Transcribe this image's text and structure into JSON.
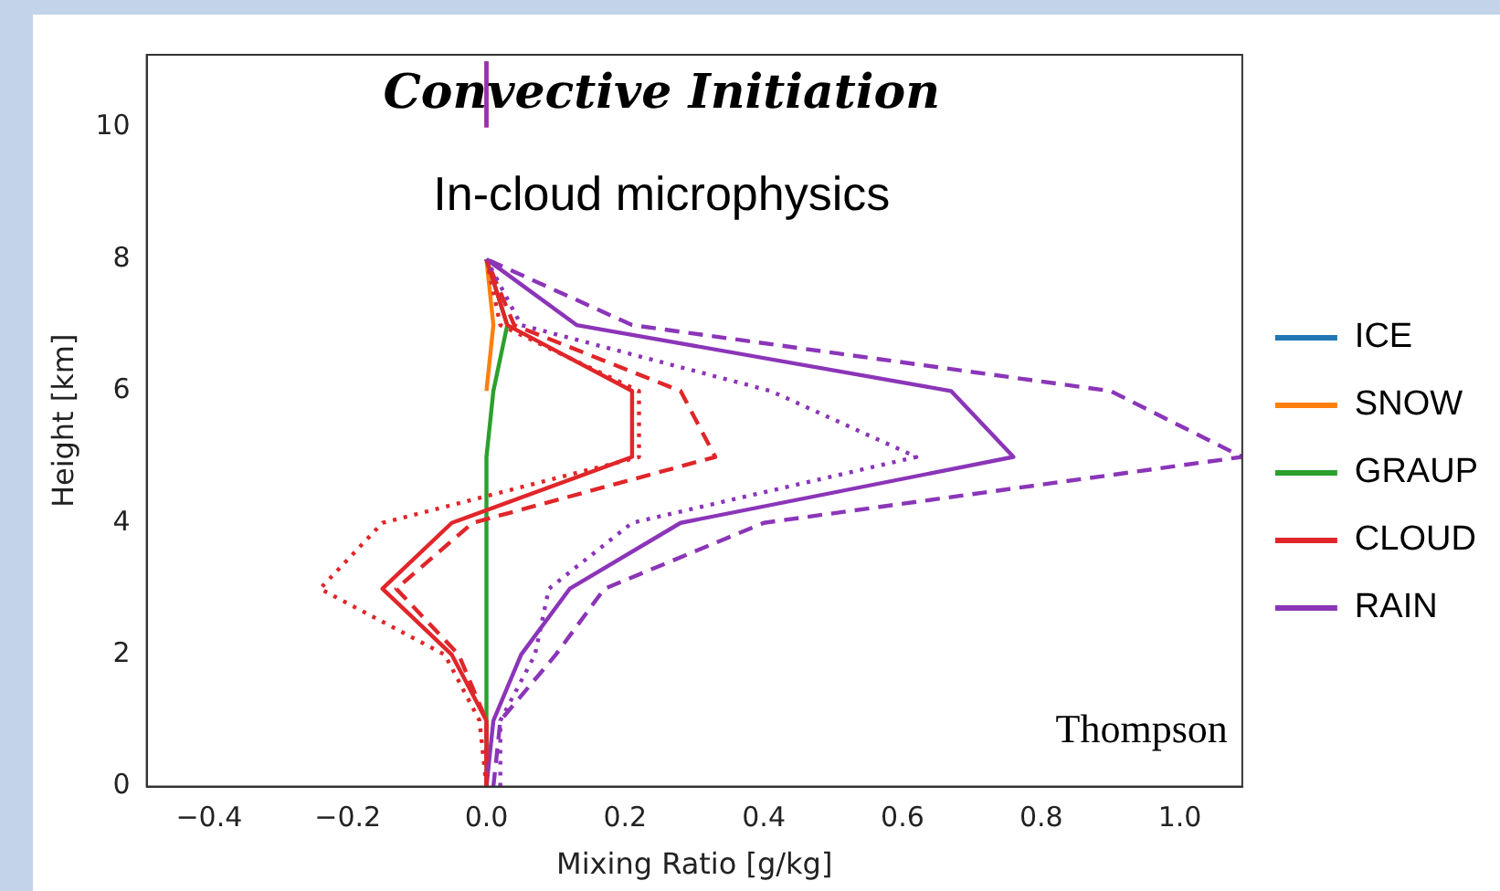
{
  "chart_data": {
    "type": "line",
    "orientation": "horizontal",
    "xlabel": "Mixing Ratio [g/kg]",
    "ylabel": "Height [km]",
    "annotations": [
      "Convective Initiation",
      "In-cloud microphysics",
      "Thompson"
    ],
    "x": [
      0,
      1,
      2,
      3,
      4,
      5,
      6,
      7,
      8,
      9,
      10,
      11
    ],
    "series": [
      {
        "name": "ICE",
        "color": "#1f77b4",
        "values": [
          null,
          null,
          null,
          null,
          null,
          null,
          null,
          null,
          null,
          null,
          null,
          null
        ]
      },
      {
        "name": "SNOW",
        "color": "#ff7f0e",
        "values": [
          null,
          null,
          null,
          null,
          null,
          null,
          0,
          0.01,
          0,
          null,
          null,
          null
        ]
      },
      {
        "name": "GRAUP",
        "color": "#2ca02c",
        "values": [
          0,
          0,
          0,
          0,
          0,
          0,
          0.01,
          0.03,
          0,
          null,
          null,
          null
        ]
      },
      {
        "name": "CLOUD",
        "color": "#e0262a",
        "values": [
          0,
          0,
          -0.05,
          -0.15,
          -0.05,
          0.21,
          0.21,
          0.03,
          0,
          null,
          0,
          0
        ]
      },
      {
        "name": "RAIN",
        "color": "#8b35b8",
        "values": [
          0,
          0.01,
          0.05,
          0.12,
          0.28,
          0.76,
          0.67,
          0.13,
          0,
          null,
          0,
          0
        ]
      },
      {
        "color": "#e0262a",
        "line_style": "dashed",
        "values": [
          0,
          0,
          -0.04,
          -0.13,
          -0.02,
          0.33,
          0.28,
          0.04,
          0,
          null,
          null,
          null
        ]
      },
      {
        "color": "#8b35b8",
        "line_style": "dashed",
        "values": [
          0.01,
          0.02,
          0.1,
          0.17,
          0.4,
          1.09,
          0.9,
          0.21,
          0,
          null,
          null,
          null
        ]
      },
      {
        "color": "#e0262a",
        "line_style": "dotted",
        "values": [
          0,
          -0.01,
          -0.06,
          -0.24,
          -0.15,
          0.22,
          0.22,
          0.02,
          0,
          null,
          null,
          null
        ]
      },
      {
        "color": "#8b35b8",
        "line_style": "dotted",
        "values": [
          0.02,
          0.02,
          0.07,
          0.09,
          0.21,
          0.62,
          0.41,
          0.05,
          0,
          null,
          null,
          null
        ]
      }
    ],
    "xlim": [
      -0.49,
      1.09
    ],
    "xticks": [
      {
        "value": -0.4,
        "label": "−0.4"
      },
      {
        "value": -0.2,
        "label": "−0.2"
      },
      {
        "value": 0,
        "label": "0.0"
      },
      {
        "value": 0.2,
        "label": "0.2"
      },
      {
        "value": 0.4,
        "label": "0.4"
      },
      {
        "value": 0.6,
        "label": "0.6"
      },
      {
        "value": 0.8,
        "label": "0.8"
      },
      {
        "value": 1,
        "label": "1.0"
      }
    ],
    "ylim": [
      0,
      11.1
    ],
    "yticks": [
      0,
      2,
      4,
      6,
      8,
      10
    ],
    "grid": false,
    "legend": "right",
    "marker": "none",
    "line_style": "solid"
  }
}
